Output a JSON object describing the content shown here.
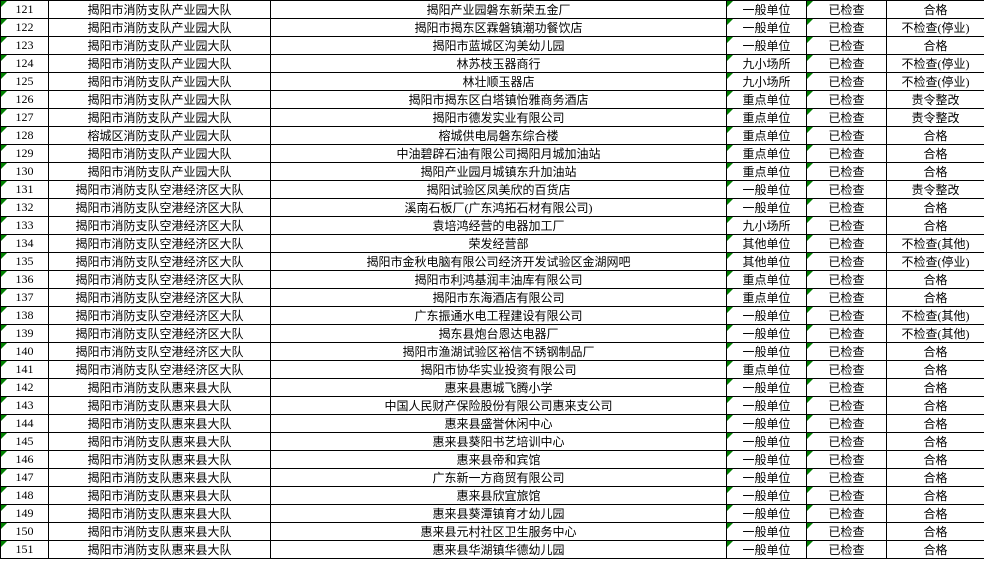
{
  "columns": [
    {
      "key": "num",
      "class": "col-num",
      "triangle": true
    },
    {
      "key": "dept",
      "class": "col-dept",
      "triangle": false
    },
    {
      "key": "name",
      "class": "col-name",
      "triangle": false
    },
    {
      "key": "type",
      "class": "col-type",
      "triangle": true
    },
    {
      "key": "check",
      "class": "col-check",
      "triangle": true
    },
    {
      "key": "result",
      "class": "col-result",
      "triangle": false
    }
  ],
  "rows": [
    {
      "num": "121",
      "dept": "揭阳市消防支队产业园大队",
      "name": "揭阳产业园磐东新荣五金厂",
      "type": "一般单位",
      "check": "已检查",
      "result": "合格"
    },
    {
      "num": "122",
      "dept": "揭阳市消防支队产业园大队",
      "name": "揭阳市揭东区霖磐镇潮功餐饮店",
      "type": "一般单位",
      "check": "已检查",
      "result": "不检查(停业)"
    },
    {
      "num": "123",
      "dept": "揭阳市消防支队产业园大队",
      "name": "揭阳市蓝城区沟美幼儿园",
      "type": "一般单位",
      "check": "已检查",
      "result": "合格"
    },
    {
      "num": "124",
      "dept": "揭阳市消防支队产业园大队",
      "name": "林苏枝玉器商行",
      "type": "九小场所",
      "check": "已检查",
      "result": "不检查(停业)"
    },
    {
      "num": "125",
      "dept": "揭阳市消防支队产业园大队",
      "name": "林壮顺玉器店",
      "type": "九小场所",
      "check": "已检查",
      "result": "不检查(停业)"
    },
    {
      "num": "126",
      "dept": "揭阳市消防支队产业园大队",
      "name": "揭阳市揭东区白塔镇怡雅商务酒店",
      "type": "重点单位",
      "check": "已检查",
      "result": "责令整改"
    },
    {
      "num": "127",
      "dept": "揭阳市消防支队产业园大队",
      "name": "揭阳市德发实业有限公司",
      "type": "重点单位",
      "check": "已检查",
      "result": "责令整改"
    },
    {
      "num": "128",
      "dept": "榕城区消防支队产业园大队",
      "name": "榕城供电局磐东综合楼",
      "type": "重点单位",
      "check": "已检查",
      "result": "合格"
    },
    {
      "num": "129",
      "dept": "揭阳市消防支队产业园大队",
      "name": "中油碧辟石油有限公司揭阳月城加油站",
      "type": "重点单位",
      "check": "已检查",
      "result": "合格"
    },
    {
      "num": "130",
      "dept": "揭阳市消防支队产业园大队",
      "name": "揭阳产业园月城镇东升加油站",
      "type": "重点单位",
      "check": "已检查",
      "result": "合格"
    },
    {
      "num": "131",
      "dept": "揭阳市消防支队空港经济区大队",
      "name": "揭阳试验区凤美欣的百货店",
      "type": "一般单位",
      "check": "已检查",
      "result": "责令整改"
    },
    {
      "num": "132",
      "dept": "揭阳市消防支队空港经济区大队",
      "name": "溪南石板厂(广东鸿拓石材有限公司)",
      "type": "一般单位",
      "check": "已检查",
      "result": "合格"
    },
    {
      "num": "133",
      "dept": "揭阳市消防支队空港经济区大队",
      "name": "袁培鸿经营的电器加工厂",
      "type": "九小场所",
      "check": "已检查",
      "result": "合格"
    },
    {
      "num": "134",
      "dept": "揭阳市消防支队空港经济区大队",
      "name": "荣发经营部",
      "type": "其他单位",
      "check": "已检查",
      "result": "不检查(其他)"
    },
    {
      "num": "135",
      "dept": "揭阳市消防支队空港经济区大队",
      "name": "揭阳市金秋电脑有限公司经济开发试验区金湖网吧",
      "type": "其他单位",
      "check": "已检查",
      "result": "不检查(停业)"
    },
    {
      "num": "136",
      "dept": "揭阳市消防支队空港经济区大队",
      "name": "揭阳市利鸿基润丰油库有限公司",
      "type": "重点单位",
      "check": "已检查",
      "result": "合格"
    },
    {
      "num": "137",
      "dept": "揭阳市消防支队空港经济区大队",
      "name": "揭阳市东海酒店有限公司",
      "type": "重点单位",
      "check": "已检查",
      "result": "合格"
    },
    {
      "num": "138",
      "dept": "揭阳市消防支队空港经济区大队",
      "name": "广东振通水电工程建设有限公司",
      "type": "一般单位",
      "check": "已检查",
      "result": "不检查(其他)"
    },
    {
      "num": "139",
      "dept": "揭阳市消防支队空港经济区大队",
      "name": "揭东县炮台恩达电器厂",
      "type": "一般单位",
      "check": "已检查",
      "result": "不检查(其他)"
    },
    {
      "num": "140",
      "dept": "揭阳市消防支队空港经济区大队",
      "name": "揭阳市渔湖试验区裕信不锈钢制品厂",
      "type": "一般单位",
      "check": "已检查",
      "result": "合格"
    },
    {
      "num": "141",
      "dept": "揭阳市消防支队空港经济区大队",
      "name": "揭阳市协华实业投资有限公司",
      "type": "重点单位",
      "check": "已检查",
      "result": "合格"
    },
    {
      "num": "142",
      "dept": "揭阳市消防支队惠来县大队",
      "name": "惠来县惠城飞腾小学",
      "type": "一般单位",
      "check": "已检查",
      "result": "合格"
    },
    {
      "num": "143",
      "dept": "揭阳市消防支队惠来县大队",
      "name": "中国人民财产保险股份有限公司惠来支公司",
      "type": "一般单位",
      "check": "已检查",
      "result": "合格"
    },
    {
      "num": "144",
      "dept": "揭阳市消防支队惠来县大队",
      "name": "惠来县盛誉休闲中心",
      "type": "一般单位",
      "check": "已检查",
      "result": "合格"
    },
    {
      "num": "145",
      "dept": "揭阳市消防支队惠来县大队",
      "name": "惠来县葵阳书艺培训中心",
      "type": "一般单位",
      "check": "已检查",
      "result": "合格"
    },
    {
      "num": "146",
      "dept": "揭阳市消防支队惠来县大队",
      "name": "惠来县帝和宾馆",
      "type": "一般单位",
      "check": "已检查",
      "result": "合格"
    },
    {
      "num": "147",
      "dept": "揭阳市消防支队惠来县大队",
      "name": "广东新一方商贸有限公司",
      "type": "一般单位",
      "check": "已检查",
      "result": "合格"
    },
    {
      "num": "148",
      "dept": "揭阳市消防支队惠来县大队",
      "name": "惠来县欣宜旅馆",
      "type": "一般单位",
      "check": "已检查",
      "result": "合格"
    },
    {
      "num": "149",
      "dept": "揭阳市消防支队惠来县大队",
      "name": "惠来县葵潭镇育才幼儿园",
      "type": "一般单位",
      "check": "已检查",
      "result": "合格"
    },
    {
      "num": "150",
      "dept": "揭阳市消防支队惠来县大队",
      "name": "惠来县元村社区卫生服务中心",
      "type": "一般单位",
      "check": "已检查",
      "result": "合格"
    },
    {
      "num": "151",
      "dept": "揭阳市消防支队惠来县大队",
      "name": "惠来县华湖镇华德幼儿园",
      "type": "一般单位",
      "check": "已检查",
      "result": "合格"
    }
  ]
}
